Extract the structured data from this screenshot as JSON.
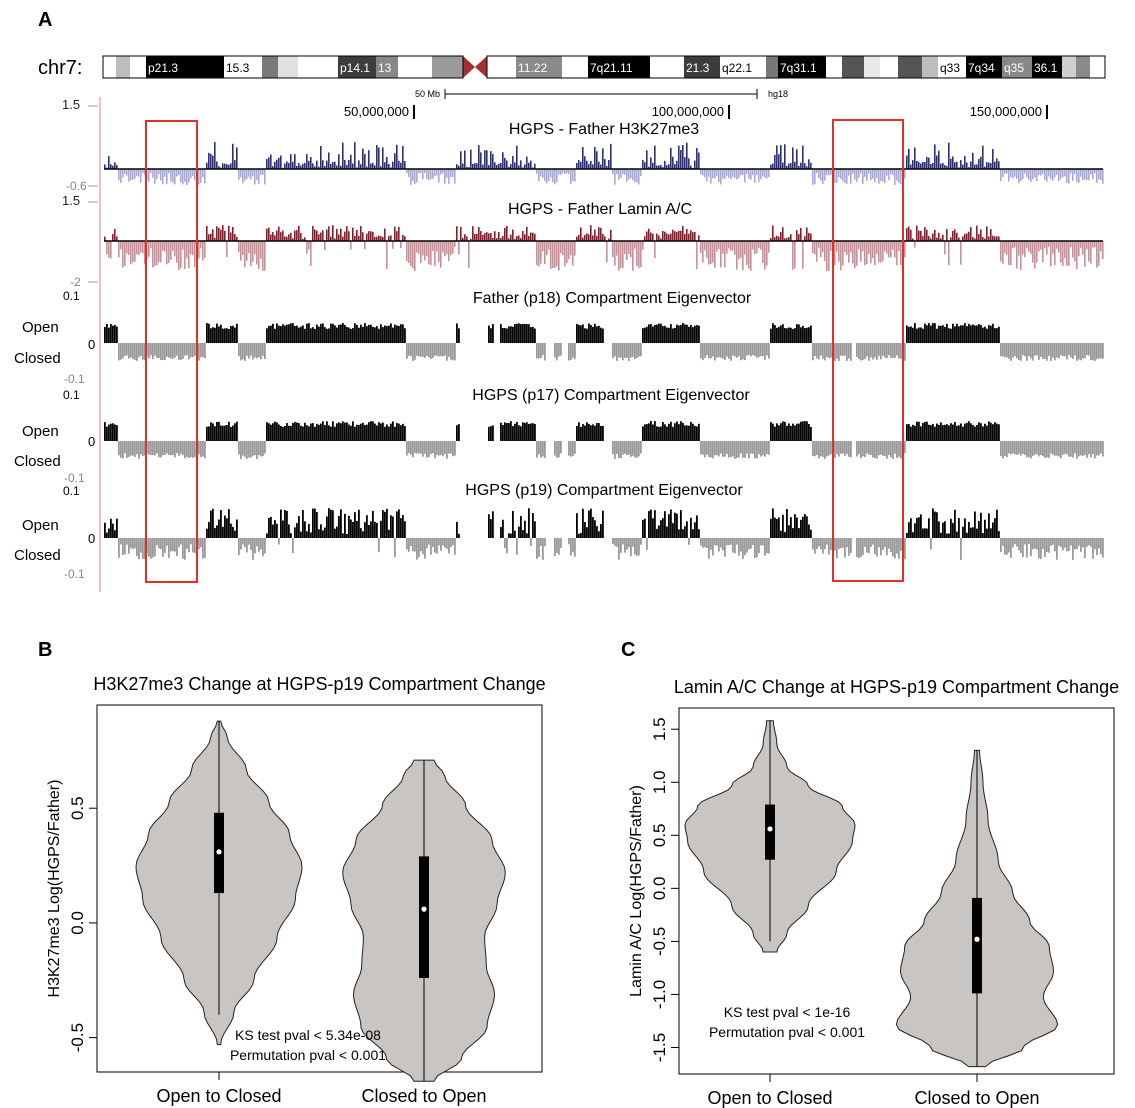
{
  "panels": {
    "a": "A",
    "b": "B",
    "c": "C"
  },
  "colors": {
    "h3k_pos": "#2b2f7e",
    "h3k_neg": "#a9a9d9",
    "lamin_pos": "#8e1b2a",
    "lamin_neg": "#cc8f97",
    "eig_open": "#000000",
    "eig_closed": "#9a9a9a",
    "highlight": "#e0302a",
    "violin_fill": "#c8c5c2",
    "centromere": "#a33030"
  },
  "ideogram": {
    "label": "chr7:",
    "bands": [
      "p21.3",
      "15.3",
      "p14.1",
      "13",
      "11.22",
      "7q21.11",
      "21.3",
      "q22.1",
      "7q31.1",
      "q33",
      "7q34",
      "q35",
      "36.1"
    ]
  },
  "ruler": {
    "scale_label": "50 Mb",
    "assembly": "hg18",
    "positions": [
      "50,000,000",
      "100,000,000",
      "150,000,000"
    ]
  },
  "tracks": {
    "h3k27me3": {
      "title": "HGPS - Father  H3K27me3",
      "ymax": "1.5",
      "ymin": "-0.6"
    },
    "lamin": {
      "title": "HGPS - Father Lamin A/C",
      "ymax": "1.5",
      "ymin": "-2"
    },
    "eigen": [
      {
        "title": "Father (p18) Compartment Eigenvector",
        "ymax": "0.1",
        "zero": "0",
        "ymin": "-0.1"
      },
      {
        "title": "HGPS (p17) Compartment Eigenvector",
        "ymax": "0.1",
        "zero": "0",
        "ymin": "-0.1"
      },
      {
        "title": "HGPS (p19) Compartment Eigenvector",
        "ymax": "0.1",
        "zero": "0",
        "ymin": "-0.1"
      }
    ],
    "open_label": "Open",
    "closed_label": "Closed"
  },
  "chart_data": [
    {
      "type": "violin",
      "title": "H3K27me3 Change at HGPS-p19 Compartment Change",
      "ylabel": "H3K27me3 Log(HGPS/Father)",
      "categories": [
        "Open to Closed",
        "Closed to Open"
      ],
      "ylim": [
        -0.65,
        0.95
      ],
      "yticks": [
        "-0.5",
        "0.0",
        "0.5"
      ],
      "yticks_values": [
        -0.5,
        0.0,
        0.5
      ],
      "violins": [
        {
          "min": -0.53,
          "max": 0.88,
          "q1": 0.13,
          "median": 0.31,
          "q3": 0.48,
          "whisker_low": -0.4,
          "whisker_high": 0.88
        },
        {
          "min": -0.69,
          "max": 0.71,
          "q1": -0.24,
          "median": 0.06,
          "q3": 0.29,
          "whisker_low": -0.69,
          "whisker_high": 0.71
        }
      ],
      "annotations": [
        "KS test pval < 5.34e-08",
        "Permutation pval  < 0.001"
      ]
    },
    {
      "type": "violin",
      "title": "Lamin A/C Change at HGPS-p19 Compartment Change",
      "ylabel": "Lamin A/C Log(HGPS/Father)",
      "categories": [
        "Open to Closed",
        "Closed to Open"
      ],
      "ylim": [
        -1.75,
        1.7
      ],
      "yticks": [
        "-1.5",
        "-1.0",
        "-0.5",
        "0.0",
        "0.5",
        "1.0",
        "1.5"
      ],
      "yticks_values": [
        -1.5,
        -1.0,
        -0.5,
        0.0,
        0.5,
        1.0,
        1.5
      ],
      "violins": [
        {
          "min": -0.6,
          "max": 1.58,
          "q1": 0.27,
          "median": 0.56,
          "q3": 0.79,
          "whisker_low": -0.5,
          "whisker_high": 1.58
        },
        {
          "min": -1.68,
          "max": 1.3,
          "q1": -0.99,
          "median": -0.48,
          "q3": -0.09,
          "whisker_low": -1.68,
          "whisker_high": 1.3
        }
      ],
      "annotations": [
        "KS test pval < 1e-16",
        "Permutation pval  < 0.001"
      ]
    }
  ]
}
